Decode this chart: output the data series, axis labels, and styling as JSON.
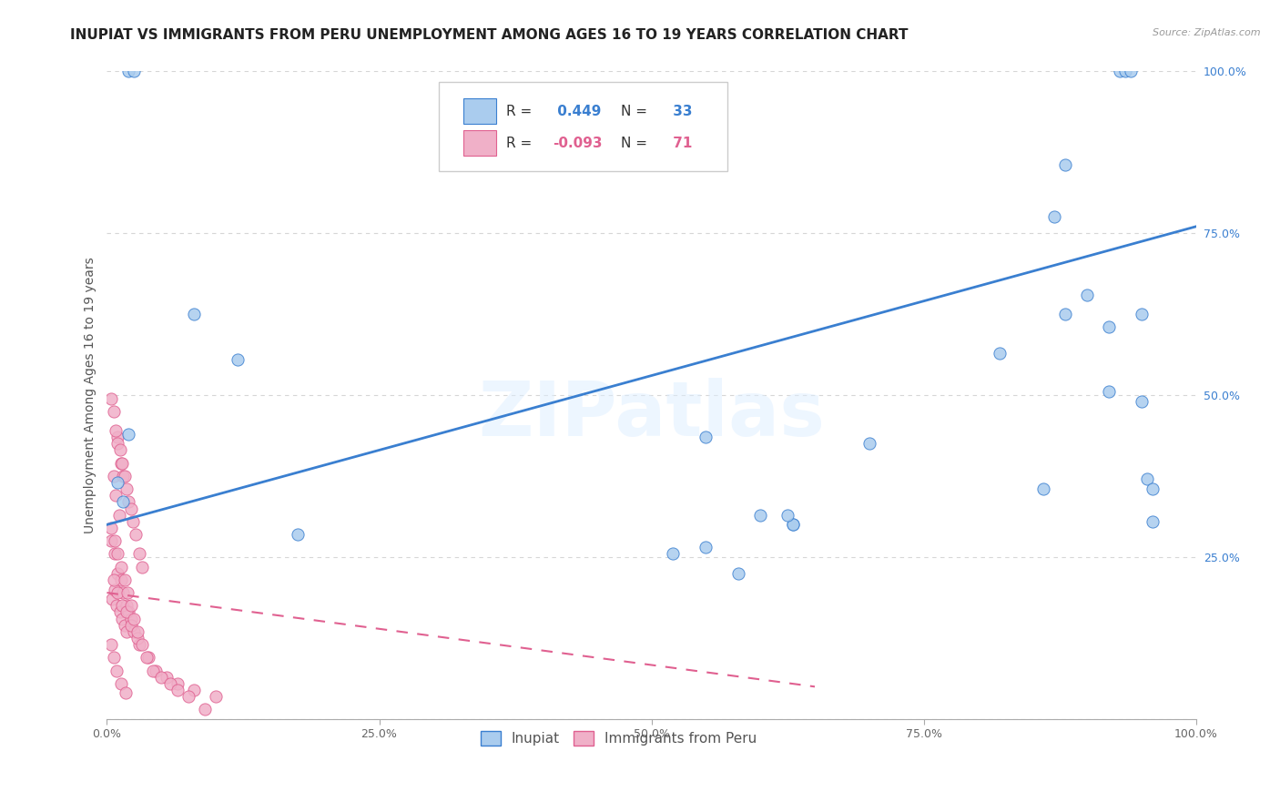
{
  "title": "INUPIAT VS IMMIGRANTS FROM PERU UNEMPLOYMENT AMONG AGES 16 TO 19 YEARS CORRELATION CHART",
  "source": "Source: ZipAtlas.com",
  "ylabel": "Unemployment Among Ages 16 to 19 years",
  "watermark": "ZIPatlas",
  "blue_R": 0.449,
  "blue_N": 33,
  "pink_R": -0.093,
  "pink_N": 71,
  "blue_color": "#aaccee",
  "pink_color": "#f0b0c8",
  "blue_line_color": "#3a7fd0",
  "pink_line_color": "#e06090",
  "blue_line_x0": 0.0,
  "blue_line_y0": 0.3,
  "blue_line_x1": 1.0,
  "blue_line_y1": 0.76,
  "pink_line_x0": 0.0,
  "pink_line_y0": 0.195,
  "pink_line_x1": 0.65,
  "pink_line_y1": 0.05,
  "blue_points_x": [
    0.02,
    0.025,
    0.08,
    0.12,
    0.02,
    0.55,
    0.58,
    0.63,
    0.63,
    0.7,
    0.82,
    0.88,
    0.9,
    0.93,
    0.935,
    0.94,
    0.95,
    0.955,
    0.96,
    0.88,
    0.92,
    0.92,
    0.87,
    0.175,
    0.52,
    0.55,
    0.86,
    0.95,
    0.96,
    0.6,
    0.625,
    0.01,
    0.015
  ],
  "blue_points_y": [
    1.0,
    1.0,
    0.625,
    0.555,
    0.44,
    0.265,
    0.225,
    0.3,
    0.3,
    0.425,
    0.565,
    0.625,
    0.655,
    1.0,
    1.0,
    1.0,
    0.49,
    0.37,
    0.305,
    0.855,
    0.505,
    0.605,
    0.775,
    0.285,
    0.255,
    0.435,
    0.355,
    0.625,
    0.355,
    0.315,
    0.315,
    0.365,
    0.335
  ],
  "pink_points_x": [
    0.005,
    0.007,
    0.009,
    0.012,
    0.014,
    0.016,
    0.018,
    0.006,
    0.008,
    0.011,
    0.013,
    0.015,
    0.01,
    0.004,
    0.006,
    0.009,
    0.013,
    0.017,
    0.004,
    0.007,
    0.01,
    0.013,
    0.015,
    0.018,
    0.02,
    0.022,
    0.025,
    0.03,
    0.038,
    0.045,
    0.055,
    0.065,
    0.08,
    0.1,
    0.004,
    0.006,
    0.008,
    0.01,
    0.012,
    0.014,
    0.016,
    0.018,
    0.02,
    0.022,
    0.024,
    0.026,
    0.03,
    0.032,
    0.006,
    0.01,
    0.014,
    0.018,
    0.022,
    0.028,
    0.004,
    0.007,
    0.01,
    0.013,
    0.016,
    0.019,
    0.022,
    0.025,
    0.028,
    0.032,
    0.036,
    0.042,
    0.05,
    0.058,
    0.065,
    0.075,
    0.09
  ],
  "pink_points_y": [
    0.185,
    0.2,
    0.175,
    0.165,
    0.155,
    0.145,
    0.135,
    0.375,
    0.345,
    0.315,
    0.395,
    0.375,
    0.435,
    0.115,
    0.095,
    0.075,
    0.055,
    0.04,
    0.275,
    0.255,
    0.225,
    0.215,
    0.195,
    0.175,
    0.165,
    0.155,
    0.135,
    0.115,
    0.095,
    0.075,
    0.065,
    0.055,
    0.045,
    0.035,
    0.495,
    0.475,
    0.445,
    0.425,
    0.415,
    0.395,
    0.375,
    0.355,
    0.335,
    0.325,
    0.305,
    0.285,
    0.255,
    0.235,
    0.215,
    0.195,
    0.175,
    0.165,
    0.145,
    0.125,
    0.295,
    0.275,
    0.255,
    0.235,
    0.215,
    0.195,
    0.175,
    0.155,
    0.135,
    0.115,
    0.095,
    0.075,
    0.065,
    0.055,
    0.045,
    0.035,
    0.015
  ],
  "legend_label_blue": "Inupiat",
  "legend_label_pink": "Immigrants from Peru",
  "xlim": [
    0.0,
    1.0
  ],
  "ylim": [
    0.0,
    1.0
  ],
  "yticks": [
    0.0,
    0.25,
    0.5,
    0.75,
    1.0
  ],
  "ytick_labels": [
    "",
    "25.0%",
    "50.0%",
    "75.0%",
    "100.0%"
  ],
  "xticks": [
    0.0,
    0.25,
    0.5,
    0.75,
    1.0
  ],
  "xtick_labels": [
    "0.0%",
    "25.0%",
    "50.0%",
    "75.0%",
    "100.0%"
  ],
  "title_fontsize": 11,
  "axis_label_fontsize": 10,
  "tick_fontsize": 9
}
